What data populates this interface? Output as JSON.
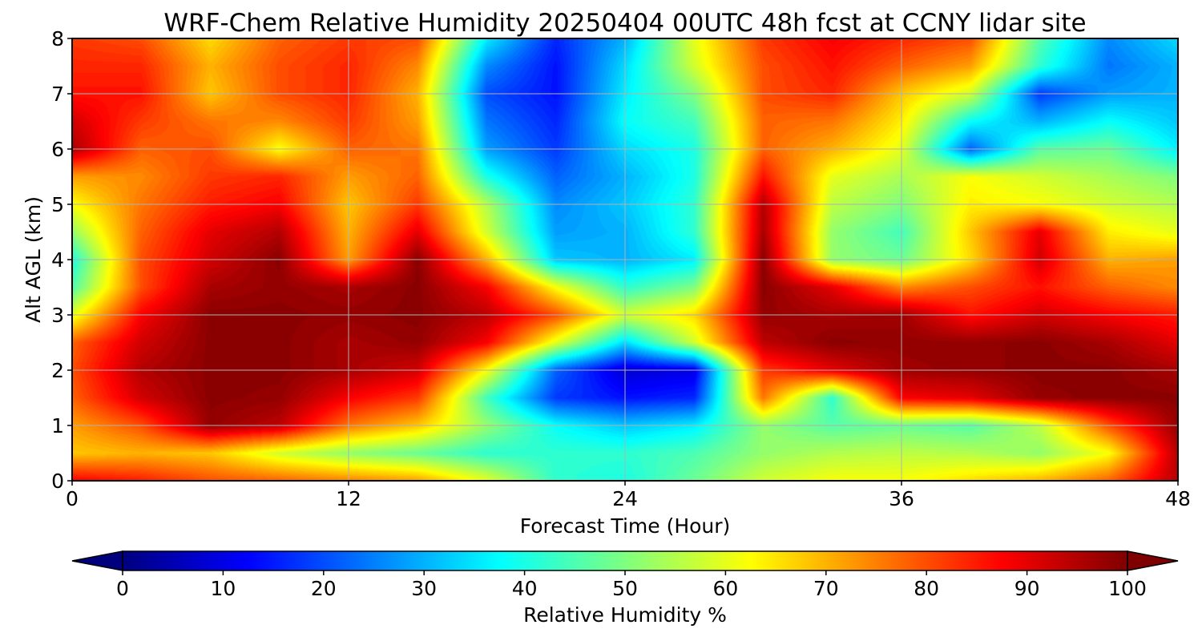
{
  "chart_data": {
    "type": "heatmap",
    "title": "WRF-Chem Relative Humidity 20250404 00UTC 48h fcst at CCNY lidar site",
    "xlabel": "Forecast Time (Hour)",
    "ylabel": "Alt AGL (km)",
    "xlim": [
      0,
      48
    ],
    "ylim": [
      0,
      8
    ],
    "xticks": [
      0,
      12,
      24,
      36,
      48
    ],
    "yticks": [
      0,
      1,
      2,
      3,
      4,
      5,
      6,
      7,
      8
    ],
    "grid": true,
    "colormap": "jet",
    "colorbar": {
      "label": "Relative Humidity %",
      "range": [
        0,
        100
      ],
      "ticks": [
        0,
        10,
        20,
        30,
        40,
        50,
        60,
        70,
        80,
        90,
        100
      ],
      "extend": "both",
      "orientation": "horizontal"
    },
    "x": [
      0,
      3,
      6,
      9,
      12,
      15,
      18,
      21,
      24,
      27,
      30,
      33,
      36,
      39,
      42,
      45,
      48
    ],
    "y": [
      0,
      0.5,
      1,
      1.5,
      2,
      2.5,
      3,
      3.5,
      4,
      4.5,
      5,
      5.5,
      6,
      6.5,
      7,
      7.5,
      8
    ],
    "z": [
      [
        88,
        85,
        80,
        78,
        75,
        72,
        60,
        42,
        40,
        48,
        58,
        62,
        62,
        66,
        70,
        78,
        95
      ],
      [
        68,
        70,
        68,
        58,
        52,
        48,
        42,
        42,
        42,
        45,
        52,
        55,
        56,
        55,
        52,
        62,
        95
      ],
      [
        72,
        80,
        98,
        94,
        76,
        68,
        52,
        38,
        32,
        36,
        52,
        46,
        48,
        46,
        56,
        80,
        98
      ],
      [
        78,
        92,
        99,
        98,
        88,
        82,
        44,
        18,
        14,
        16,
        76,
        42,
        88,
        90,
        98,
        99,
        99
      ],
      [
        80,
        95,
        99,
        99,
        96,
        92,
        62,
        22,
        8,
        10,
        82,
        90,
        97,
        98,
        99,
        99,
        96
      ],
      [
        78,
        92,
        99,
        99,
        96,
        98,
        88,
        60,
        34,
        58,
        94,
        99,
        98,
        98,
        99,
        96,
        90
      ],
      [
        60,
        88,
        99,
        99,
        98,
        99,
        94,
        80,
        58,
        66,
        98,
        96,
        97,
        86,
        92,
        88,
        85
      ],
      [
        45,
        80,
        96,
        98,
        96,
        99,
        88,
        62,
        42,
        50,
        99,
        90,
        74,
        80,
        86,
        78,
        74
      ],
      [
        40,
        80,
        92,
        99,
        72,
        99,
        70,
        32,
        30,
        36,
        99,
        52,
        48,
        66,
        92,
        70,
        72
      ],
      [
        52,
        78,
        90,
        95,
        70,
        90,
        58,
        28,
        30,
        42,
        96,
        52,
        44,
        68,
        90,
        64,
        60
      ],
      [
        62,
        76,
        85,
        88,
        68,
        82,
        55,
        26,
        32,
        42,
        95,
        56,
        50,
        64,
        62,
        58,
        55
      ],
      [
        72,
        74,
        82,
        84,
        72,
        78,
        40,
        22,
        30,
        40,
        86,
        60,
        54,
        62,
        58,
        54,
        50
      ],
      [
        96,
        78,
        80,
        62,
        78,
        76,
        28,
        18,
        34,
        40,
        78,
        70,
        60,
        22,
        46,
        48,
        36
      ],
      [
        92,
        82,
        76,
        74,
        82,
        72,
        24,
        16,
        38,
        44,
        78,
        76,
        64,
        38,
        30,
        38,
        32
      ],
      [
        86,
        86,
        68,
        80,
        84,
        70,
        20,
        14,
        36,
        50,
        80,
        84,
        68,
        58,
        18,
        28,
        30
      ],
      [
        84,
        84,
        70,
        80,
        84,
        74,
        26,
        14,
        34,
        58,
        80,
        86,
        78,
        72,
        42,
        24,
        30
      ],
      [
        82,
        80,
        66,
        78,
        82,
        80,
        36,
        16,
        30,
        60,
        82,
        88,
        84,
        80,
        46,
        26,
        34
      ]
    ]
  }
}
